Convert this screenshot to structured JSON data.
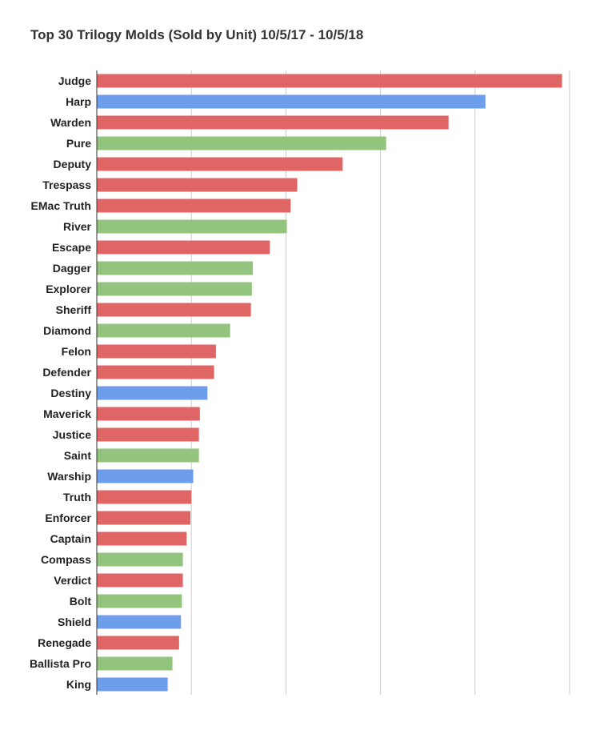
{
  "chart_data": {
    "type": "bar",
    "orientation": "horizontal",
    "title": "Top 30 Trilogy Molds (Sold by Unit) 10/5/17 - 10/5/18",
    "xlabel": "",
    "ylabel": "",
    "grid": true,
    "xlim": [
      0,
      5
    ],
    "categories": [
      "Judge",
      "Harp",
      "Warden",
      "Pure",
      "Deputy",
      "Trespass",
      "EMac Truth",
      "River",
      "Escape",
      "Dagger",
      "Explorer",
      "Sheriff",
      "Diamond",
      "Felon",
      "Defender",
      "Destiny",
      "Maverick",
      "Justice",
      "Saint",
      "Warship",
      "Truth",
      "Enforcer",
      "Captain",
      "Compass",
      "Verdict",
      "Bolt",
      "Shield",
      "Renegade",
      "Ballista Pro",
      "King"
    ],
    "values": [
      4.92,
      4.11,
      3.72,
      3.06,
      2.6,
      2.12,
      2.05,
      2.01,
      1.83,
      1.65,
      1.64,
      1.63,
      1.41,
      1.26,
      1.24,
      1.17,
      1.09,
      1.08,
      1.08,
      1.02,
      1.0,
      0.99,
      0.95,
      0.91,
      0.91,
      0.9,
      0.89,
      0.87,
      0.8,
      0.75
    ],
    "bar_colors": [
      "#e06666",
      "#6d9eeb",
      "#e06666",
      "#93c47d",
      "#e06666",
      "#e06666",
      "#e06666",
      "#93c47d",
      "#e06666",
      "#93c47d",
      "#93c47d",
      "#e06666",
      "#93c47d",
      "#e06666",
      "#e06666",
      "#6d9eeb",
      "#e06666",
      "#e06666",
      "#93c47d",
      "#6d9eeb",
      "#e06666",
      "#e06666",
      "#e06666",
      "#93c47d",
      "#e06666",
      "#93c47d",
      "#6d9eeb",
      "#e06666",
      "#93c47d",
      "#6d9eeb"
    ]
  },
  "colors": {
    "red": "#e06666",
    "blue": "#6d9eeb",
    "green": "#93c47d",
    "grid": "#cccccc",
    "axis": "#333333"
  }
}
